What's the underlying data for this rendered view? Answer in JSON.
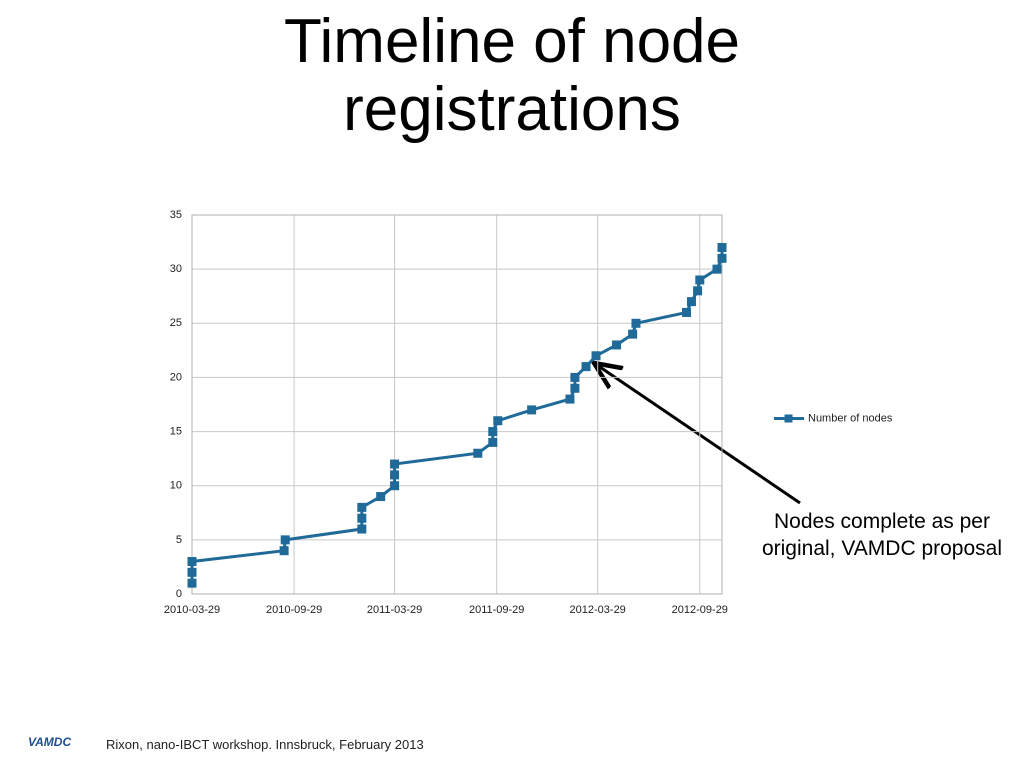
{
  "title": "Timeline of node registrations",
  "chart_data": {
    "type": "line",
    "x": [
      "2010-03-29",
      "2010-03-29",
      "2010-03-29",
      "2010-09-11",
      "2010-09-13",
      "2011-01-29",
      "2011-01-29",
      "2011-01-29",
      "2011-03-04",
      "2011-03-29",
      "2011-03-29",
      "2011-03-29",
      "2011-08-26",
      "2011-09-22",
      "2011-09-22",
      "2011-10-01",
      "2011-12-01",
      "2012-02-08",
      "2012-02-17",
      "2012-02-17",
      "2012-03-08",
      "2012-03-26",
      "2012-05-02",
      "2012-05-31",
      "2012-06-06",
      "2012-09-05",
      "2012-09-14",
      "2012-09-25",
      "2012-09-29",
      "2012-10-30",
      "2012-11-08",
      "2012-11-08"
    ],
    "series": [
      {
        "name": "Number of nodes",
        "color": "#1f6a99",
        "values": [
          1,
          2,
          3,
          4,
          5,
          6,
          7,
          8,
          9,
          10,
          11,
          12,
          13,
          14,
          15,
          16,
          17,
          18,
          19,
          20,
          21,
          22,
          23,
          24,
          25,
          26,
          27,
          28,
          29,
          30,
          31,
          32
        ]
      }
    ],
    "xlim": [
      "2010-03-29",
      "2012-11-08"
    ],
    "xticks": [
      "2010-03-29",
      "2010-09-29",
      "2011-03-29",
      "2011-09-29",
      "2012-03-29",
      "2012-09-29"
    ],
    "ylim": [
      0,
      35
    ],
    "yticks": [
      0,
      5,
      10,
      15,
      20,
      25,
      30,
      35
    ],
    "grid": true,
    "legend": "right"
  },
  "annotation": "Nodes complete as per original, VAMDC proposal",
  "footer": {
    "logo": "VAMDC",
    "text": "Rixon, nano-IBCT workshop. Innsbruck, February 2013"
  }
}
